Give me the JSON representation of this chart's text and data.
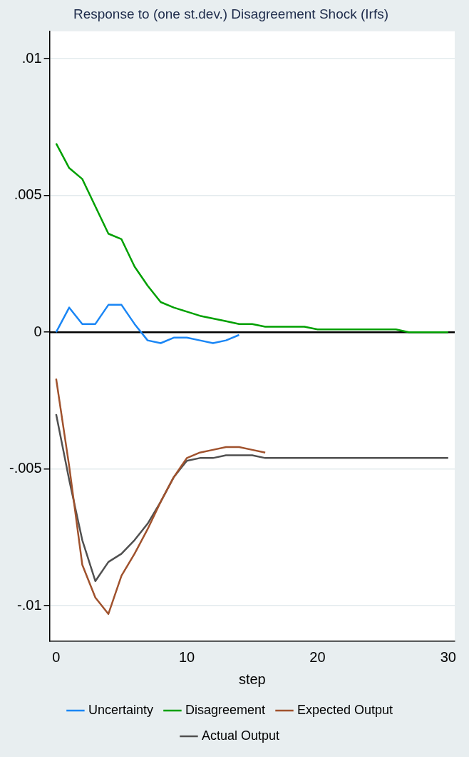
{
  "chart_data": {
    "type": "line",
    "title": "Response to (one st.dev.) Disagreement Shock (Irfs)",
    "xlabel": "step",
    "x": [
      0,
      1,
      2,
      3,
      4,
      5,
      6,
      7,
      8,
      9,
      10,
      11,
      12,
      13,
      14,
      15,
      16,
      17,
      18,
      19,
      20,
      21,
      22,
      23,
      24,
      25,
      26,
      27,
      28,
      29,
      30
    ],
    "series": [
      {
        "name": "Uncertainty",
        "color": "#1a86f5",
        "values": [
          0,
          0.0009,
          0.0003,
          0.0003,
          0.001,
          0.001,
          0.0003,
          -0.0003,
          -0.0004,
          -0.0002,
          -0.0002,
          -0.0003,
          -0.0004,
          -0.0003,
          -0.0001,
          null,
          null,
          null,
          null,
          null,
          null,
          null,
          null,
          null,
          null,
          null,
          null,
          null,
          null,
          null,
          null
        ]
      },
      {
        "name": "Disagreement",
        "color": "#00a000",
        "values": [
          0.0069,
          0.006,
          0.0056,
          0.0046,
          0.0036,
          0.0034,
          0.0024,
          0.0017,
          0.0011,
          0.0009,
          0.00075,
          0.0006,
          0.0005,
          0.0004,
          0.0003,
          0.0003,
          0.0002,
          0.0002,
          0.0002,
          0.0002,
          0.0001,
          0.0001,
          0.0001,
          0.0001,
          0.0001,
          0.0001,
          0.0001,
          0,
          0,
          0,
          0
        ]
      },
      {
        "name": "Expected Output",
        "color": "#a0522d",
        "values": [
          -0.0017,
          -0.0049,
          -0.0085,
          -0.0097,
          -0.0103,
          -0.0089,
          -0.0081,
          -0.0072,
          -0.0062,
          -0.0053,
          -0.0046,
          -0.0044,
          -0.0043,
          -0.0042,
          -0.0042,
          -0.0043,
          -0.0044,
          null,
          null,
          null,
          null,
          null,
          null,
          null,
          null,
          null,
          null,
          null,
          null,
          null,
          null
        ]
      },
      {
        "name": "Actual Output",
        "color": "#505050",
        "values": [
          -0.003,
          -0.0054,
          -0.0076,
          -0.0091,
          -0.0084,
          -0.0081,
          -0.0076,
          -0.007,
          -0.0062,
          -0.0053,
          -0.0047,
          -0.0046,
          -0.0046,
          -0.0045,
          -0.0045,
          -0.0045,
          -0.0046,
          -0.0046,
          -0.0046,
          -0.0046,
          -0.0046,
          -0.0046,
          -0.0046,
          -0.0046,
          -0.0046,
          -0.0046,
          -0.0046,
          -0.0046,
          -0.0046,
          -0.0046,
          -0.0046
        ]
      }
    ],
    "xlim": [
      -0.5,
      30.5
    ],
    "xticks": [
      0,
      10,
      20,
      30
    ],
    "ylim": [
      -0.0113,
      0.011
    ],
    "yticks": [
      {
        "value": -0.01,
        "label": "-.01"
      },
      {
        "value": -0.005,
        "label": "-.005"
      },
      0,
      {
        "value": 0.005,
        "label": ".005"
      },
      {
        "value": 0.01,
        "label": ".01"
      }
    ],
    "ref_lines": [
      {
        "axis": "y",
        "value": 0,
        "color": "#000000"
      }
    ],
    "grid": "y",
    "legend": "bottom",
    "marker": "none",
    "line_style": "solid"
  }
}
